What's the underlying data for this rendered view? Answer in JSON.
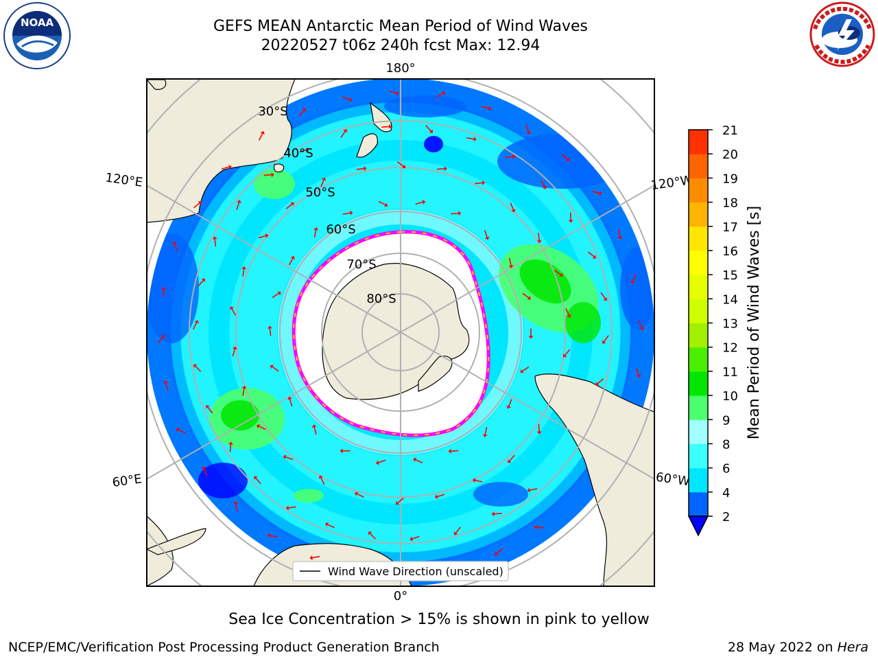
{
  "header": {
    "title_line1": "GEFS MEAN Antarctic Mean Period of Wind Waves",
    "title_line2": "20220527 t06z 240h fcst   Max: 12.94"
  },
  "logos": {
    "left": {
      "icon": "noaa-logo",
      "text": "NOAA",
      "ring_text": "NATIONAL OCEANIC AND ATMOSPHERIC ADMINISTRATION · U.S. DEPARTMENT OF COMMERCE"
    },
    "right": {
      "icon": "nws-logo",
      "ring_text": "NATIONAL WEATHER SERVICE"
    }
  },
  "map": {
    "projection": "south-polar-stereographic",
    "longitude_labels": [
      "180°",
      "120°E",
      "120°W",
      "60°E",
      "60°W",
      "0°"
    ],
    "latitude_labels": [
      "30°S",
      "40°S",
      "50°S",
      "60°S",
      "70°S",
      "80°S"
    ],
    "legend_label": "Wind Wave Direction (unscaled)",
    "arrow_color": "#ff0000",
    "land_color": "#efecdc",
    "ice_color": "#ffffff",
    "ice_edge_colors": [
      "#ff00ff",
      "#ffa0ff",
      "#ffc800"
    ]
  },
  "colorbar": {
    "label": "Mean Period of Wind Waves [s]",
    "ticks": [
      "2",
      "4",
      "6",
      "8",
      "9",
      "10",
      "11",
      "12",
      "13",
      "14",
      "15",
      "16",
      "17",
      "18",
      "19",
      "20",
      "21"
    ],
    "colors": [
      "#0064ff",
      "#00e6ff",
      "#3cffff",
      "#a0ffff",
      "#4bff6e",
      "#00e600",
      "#4bf000",
      "#a0f000",
      "#cdff00",
      "#e6ff00",
      "#ffff00",
      "#ffe600",
      "#ffb400",
      "#ff8c00",
      "#ff6400",
      "#ff3200"
    ],
    "under_color": "#0000ff"
  },
  "notes": {
    "sea_ice": "Sea Ice Concentration > 15% is shown in pink to yellow"
  },
  "footer": {
    "left": "NCEP/EMC/Verification Post Processing Product Generation Branch",
    "date": "28 May 2022 on ",
    "host": "Hera"
  }
}
